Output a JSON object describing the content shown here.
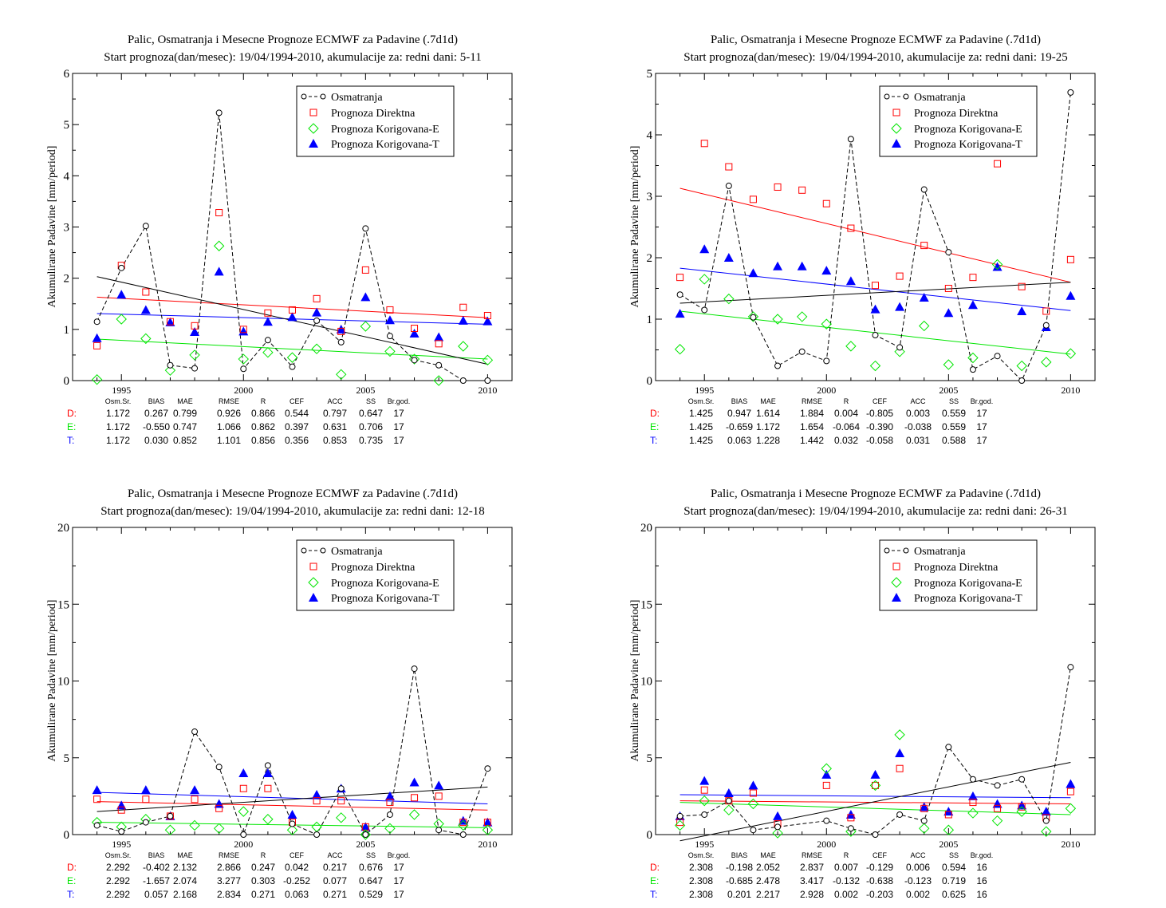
{
  "legend": {
    "entries": [
      "Osmatranja",
      "Prognoza Direktna",
      "Prognoza Korigovana-E",
      "Prognoza Korigovana-T"
    ]
  },
  "colors": {
    "obs": "#000000",
    "direct": "#ff0000",
    "korE": "#00e600",
    "korT": "#0000ff"
  },
  "stats_headers": [
    "Osm.Sr.",
    "BIAS",
    "MAE",
    "RMSE",
    "R",
    "CEF",
    "ACC",
    "SS",
    "Br.god."
  ],
  "row_labels": [
    "D:",
    "E:",
    "T:"
  ],
  "chart_data": [
    {
      "type": "scatter",
      "title": "Palic, Osmatranja i Mesecne Prognoze ECMWF za Padavine (.7d1d)",
      "subtitle": "Start prognoza(dan/mesec): 19/04/1994-2010, akumulacije za: redni dani: 5-11",
      "ylabel": "Akumulirane Padavine [mm/period]",
      "xlim": [
        1993,
        2011
      ],
      "ylim": [
        0,
        6
      ],
      "yticks": [
        0,
        1,
        2,
        3,
        4,
        5,
        6
      ],
      "xticks": [
        1995,
        2000,
        2005,
        2010
      ],
      "x": [
        1994,
        1995,
        1996,
        1997,
        1998,
        1999,
        2000,
        2001,
        2002,
        2003,
        2004,
        2005,
        2006,
        2007,
        2008,
        2009,
        2010
      ],
      "series": [
        {
          "name": "Osmatranja",
          "values": [
            1.15,
            2.2,
            3.02,
            0.3,
            0.24,
            5.23,
            0.23,
            0.79,
            0.27,
            1.17,
            0.75,
            2.97,
            0.87,
            0.4,
            0.3,
            0.0,
            0.0
          ]
        },
        {
          "name": "Prognoza Direktna",
          "values": [
            0.68,
            2.25,
            1.73,
            1.15,
            1.07,
            3.28,
            1.0,
            1.32,
            1.38,
            1.6,
            0.96,
            2.16,
            1.38,
            1.02,
            0.72,
            1.43,
            1.27
          ]
        },
        {
          "name": "Prognoza Korigovana-E",
          "values": [
            0.02,
            1.2,
            0.82,
            0.2,
            0.5,
            2.63,
            0.42,
            0.55,
            0.45,
            0.62,
            0.12,
            1.06,
            0.57,
            0.42,
            0.0,
            0.67,
            0.4
          ]
        },
        {
          "name": "Prognoza Korigovana-T",
          "values": [
            0.83,
            1.68,
            1.38,
            1.14,
            0.95,
            2.13,
            0.96,
            1.15,
            1.24,
            1.33,
            1.0,
            1.63,
            1.18,
            0.92,
            0.85,
            1.17,
            1.16
          ]
        }
      ],
      "trends": {
        "obs": [
          2.03,
          0.32
        ],
        "direct": [
          1.63,
          1.23
        ],
        "korE": [
          0.81,
          0.42
        ],
        "korT": [
          1.31,
          1.1
        ]
      },
      "stats": [
        [
          "1.172",
          "0.267",
          "0.799",
          "0.926",
          "0.866",
          "0.544",
          "0.797",
          "0.647",
          "17"
        ],
        [
          "1.172",
          "-0.550",
          "0.747",
          "1.066",
          "0.862",
          "0.397",
          "0.631",
          "0.706",
          "17"
        ],
        [
          "1.172",
          "0.030",
          "0.852",
          "1.101",
          "0.856",
          "0.356",
          "0.853",
          "0.735",
          "17"
        ]
      ]
    },
    {
      "type": "scatter",
      "title": "Palic, Osmatranja i Mesecne Prognoze ECMWF za Padavine (.7d1d)",
      "subtitle": "Start prognoza(dan/mesec): 19/04/1994-2010, akumulacije za: redni dani: 19-25",
      "ylabel": "Akumulirane Padavine [mm/period]",
      "xlim": [
        1993,
        2011
      ],
      "ylim": [
        0,
        5
      ],
      "yticks": [
        0,
        1,
        2,
        3,
        4,
        5
      ],
      "xticks": [
        1995,
        2000,
        2005,
        2010
      ],
      "x": [
        1994,
        1995,
        1996,
        1997,
        1998,
        1999,
        2000,
        2001,
        2002,
        2003,
        2004,
        2005,
        2006,
        2007,
        2008,
        2009,
        2010
      ],
      "series": [
        {
          "name": "Osmatranja",
          "values": [
            1.4,
            1.15,
            3.17,
            1.03,
            0.24,
            0.47,
            0.32,
            3.93,
            0.74,
            0.54,
            3.11,
            2.09,
            0.18,
            0.4,
            0.0,
            0.9,
            4.69
          ]
        },
        {
          "name": "Prognoza Direktna",
          "values": [
            1.68,
            3.86,
            3.48,
            2.95,
            3.15,
            3.1,
            2.88,
            2.48,
            1.55,
            1.7,
            2.2,
            1.5,
            1.68,
            3.53,
            1.53,
            1.13,
            1.97
          ]
        },
        {
          "name": "Prognoza Korigovana-E",
          "values": [
            0.51,
            1.65,
            1.33,
            1.04,
            1.0,
            1.04,
            0.92,
            0.56,
            0.24,
            0.47,
            0.89,
            0.26,
            0.37,
            1.89,
            0.24,
            0.3,
            0.44
          ]
        },
        {
          "name": "Prognoza Korigovana-T",
          "values": [
            1.09,
            2.14,
            2.0,
            1.75,
            1.86,
            1.86,
            1.79,
            1.62,
            1.16,
            1.2,
            1.35,
            1.1,
            1.23,
            1.85,
            1.13,
            0.87,
            1.38
          ]
        }
      ],
      "trends": {
        "obs": [
          1.26,
          1.6
        ],
        "direct": [
          3.13,
          1.6
        ],
        "korE": [
          1.13,
          0.43
        ],
        "korT": [
          1.83,
          1.14
        ]
      },
      "stats": [
        [
          "1.425",
          "0.947",
          "1.614",
          "1.884",
          "0.004",
          "-0.805",
          "0.003",
          "0.559",
          "17"
        ],
        [
          "1.425",
          "-0.659",
          "1.172",
          "1.654",
          "-0.064",
          "-0.390",
          "-0.038",
          "0.559",
          "17"
        ],
        [
          "1.425",
          "0.063",
          "1.228",
          "1.442",
          "0.032",
          "-0.058",
          "0.031",
          "0.588",
          "17"
        ]
      ]
    },
    {
      "type": "scatter",
      "title": "Palic, Osmatranja i Mesecne Prognoze ECMWF za Padavine (.7d1d)",
      "subtitle": "Start prognoza(dan/mesec): 19/04/1994-2010, akumulacije za: redni dani: 12-18",
      "ylabel": "Akumulirane Padavine [mm/period]",
      "xlim": [
        1993,
        2011
      ],
      "ylim": [
        0,
        20
      ],
      "yticks": [
        0,
        5,
        10,
        15,
        20
      ],
      "xticks": [
        1995,
        2000,
        2005,
        2010
      ],
      "x": [
        1994,
        1995,
        1996,
        1997,
        1998,
        1999,
        2000,
        2001,
        2002,
        2003,
        2004,
        2005,
        2006,
        2007,
        2008,
        2009,
        2010
      ],
      "series": [
        {
          "name": "Osmatranja",
          "values": [
            0.6,
            0.2,
            0.8,
            1.2,
            6.7,
            4.4,
            0.0,
            4.5,
            0.7,
            0.0,
            3.0,
            0.0,
            1.3,
            10.8,
            0.3,
            0.0,
            4.3
          ]
        },
        {
          "name": "Prognoza Direktna",
          "values": [
            2.3,
            1.6,
            2.3,
            1.2,
            2.3,
            1.7,
            3.0,
            3.0,
            0.8,
            2.2,
            2.2,
            0.5,
            2.1,
            2.4,
            2.5,
            0.8,
            0.8
          ]
        },
        {
          "name": "Prognoza Korigovana-E",
          "values": [
            0.8,
            0.5,
            1.0,
            0.3,
            0.6,
            0.4,
            1.5,
            1.0,
            0.3,
            0.5,
            1.1,
            0.0,
            0.4,
            1.3,
            0.7,
            0.6,
            0.3
          ]
        },
        {
          "name": "Prognoza Korigovana-T",
          "values": [
            2.9,
            1.9,
            2.9,
            1.2,
            2.9,
            2.0,
            4.0,
            4.0,
            1.3,
            2.6,
            3.0,
            0.5,
            2.5,
            3.4,
            3.2,
            0.9,
            0.8
          ]
        }
      ],
      "trends": {
        "obs": [
          1.5,
          3.1
        ],
        "direct": [
          2.15,
          1.6
        ],
        "korE": [
          0.8,
          0.45
        ],
        "korT": [
          2.75,
          2.0
        ]
      },
      "stats": [
        [
          "2.292",
          "-0.402",
          "2.132",
          "2.866",
          "0.247",
          "0.042",
          "0.217",
          "0.676",
          "17"
        ],
        [
          "2.292",
          "-1.657",
          "2.074",
          "3.277",
          "0.303",
          "-0.252",
          "0.077",
          "0.647",
          "17"
        ],
        [
          "2.292",
          "0.057",
          "2.168",
          "2.834",
          "0.271",
          "0.063",
          "0.271",
          "0.529",
          "17"
        ]
      ]
    },
    {
      "type": "scatter",
      "title": "Palic, Osmatranja i Mesecne Prognoze ECMWF za Padavine (.7d1d)",
      "subtitle": "Start prognoza(dan/mesec): 19/04/1994-2010, akumulacije za: redni dani: 26-31",
      "ylabel": "Akumulirane Padavine [mm/period]",
      "xlim": [
        1993,
        2011
      ],
      "ylim": [
        0,
        20
      ],
      "yticks": [
        0,
        5,
        10,
        15,
        20
      ],
      "xticks": [
        1995,
        2000,
        2005,
        2010
      ],
      "x": [
        1994,
        1995,
        1996,
        1997,
        1998,
        2000,
        2001,
        2002,
        2003,
        2004,
        2005,
        2006,
        2007,
        2008,
        2009,
        2010
      ],
      "series": [
        {
          "name": "Osmatranja",
          "values": [
            1.2,
            1.3,
            2.2,
            0.3,
            0.5,
            0.9,
            0.4,
            0.0,
            1.3,
            0.9,
            5.7,
            3.6,
            3.2,
            3.6,
            0.9,
            10.9
          ]
        },
        {
          "name": "Prognoza Direktna",
          "values": [
            0.8,
            2.9,
            2.2,
            2.7,
            0.7,
            3.2,
            1.1,
            3.2,
            4.3,
            1.7,
            1.3,
            2.1,
            1.7,
            1.8,
            1.1,
            2.8
          ]
        },
        {
          "name": "Prognoza Korigovana-E",
          "values": [
            0.6,
            2.2,
            1.6,
            2.0,
            0.1,
            4.3,
            0.2,
            3.2,
            6.5,
            0.4,
            0.3,
            1.4,
            0.9,
            1.5,
            0.2,
            1.7
          ]
        },
        {
          "name": "Prognoza Korigovana-T",
          "values": [
            1.2,
            3.5,
            2.7,
            3.2,
            1.2,
            3.9,
            1.3,
            3.9,
            5.3,
            1.8,
            1.5,
            2.5,
            2.0,
            1.9,
            1.5,
            3.3
          ]
        }
      ],
      "trends": {
        "obs": [
          -0.4,
          4.7
        ],
        "direct": [
          2.2,
          2.0
        ],
        "korE": [
          2.1,
          1.3
        ],
        "korT": [
          2.6,
          2.4
        ]
      },
      "stats": [
        [
          "2.308",
          "-0.198",
          "2.052",
          "2.837",
          "0.007",
          "-0.129",
          "0.006",
          "0.594",
          "16"
        ],
        [
          "2.308",
          "-0.685",
          "2.478",
          "3.417",
          "-0.132",
          "-0.638",
          "-0.123",
          "0.719",
          "16"
        ],
        [
          "2.308",
          "0.201",
          "2.217",
          "2.928",
          "0.002",
          "-0.203",
          "0.002",
          "0.625",
          "16"
        ]
      ]
    }
  ]
}
